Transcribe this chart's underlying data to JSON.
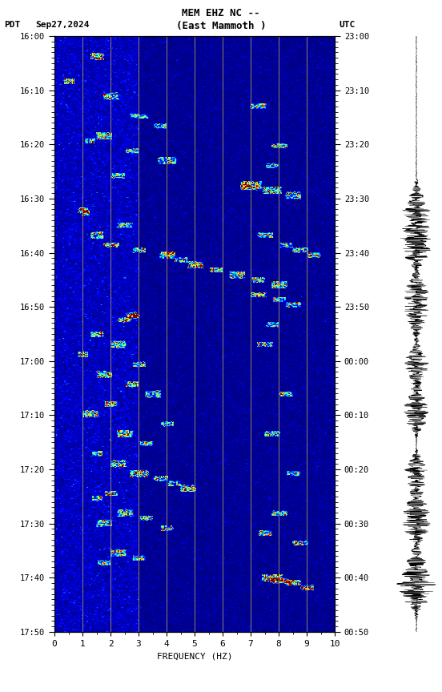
{
  "title_line1": "MEM EHZ NC --",
  "title_line2": "(East Mammoth )",
  "left_label": "PDT",
  "date_label": "Sep27,2024",
  "right_label": "UTC",
  "pdt_times": [
    "16:00",
    "16:10",
    "16:20",
    "16:30",
    "16:40",
    "16:50",
    "17:00",
    "17:10",
    "17:20",
    "17:30",
    "17:40",
    "17:50"
  ],
  "utc_times": [
    "23:00",
    "23:10",
    "23:20",
    "23:30",
    "23:40",
    "23:50",
    "00:00",
    "00:10",
    "00:20",
    "00:30",
    "00:40",
    "00:50"
  ],
  "freq_min": 0,
  "freq_max": 10,
  "freq_ticks": [
    0,
    1,
    2,
    3,
    4,
    5,
    6,
    7,
    8,
    9,
    10
  ],
  "freq_label": "FREQUENCY (HZ)",
  "vlines": [
    1,
    2,
    3,
    4,
    5,
    6,
    7,
    8,
    9
  ],
  "fig_width": 5.52,
  "fig_height": 8.64,
  "dpi": 100
}
